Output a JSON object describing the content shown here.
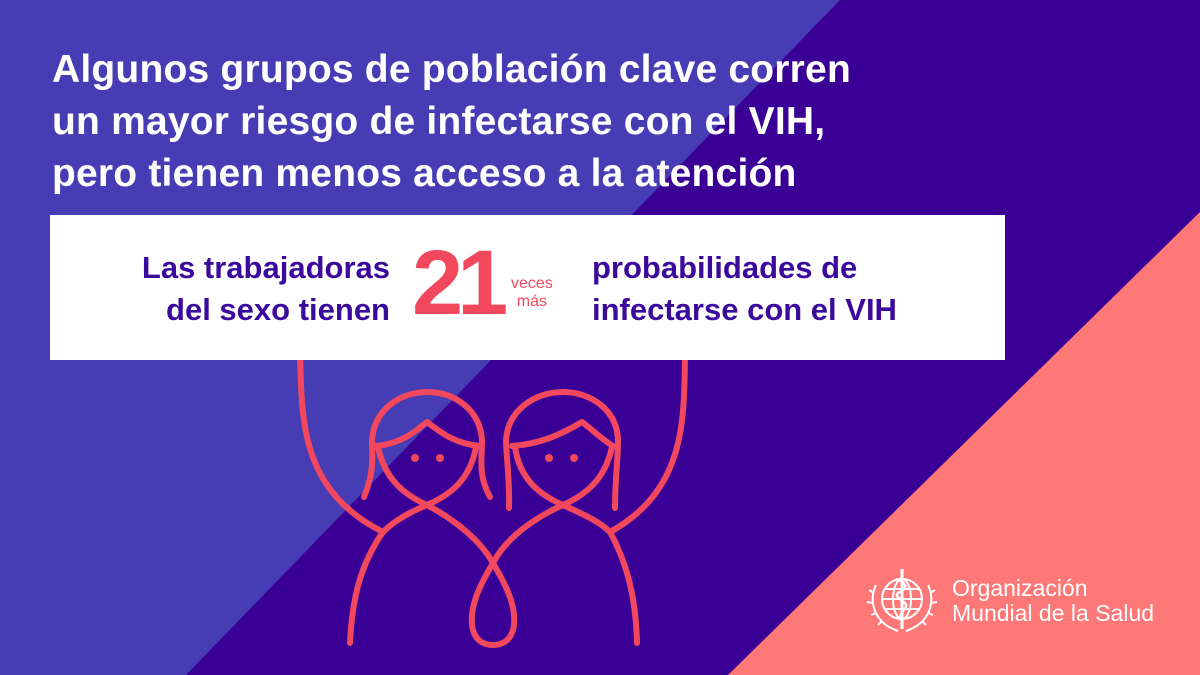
{
  "colors": {
    "light_purple": "#463cb4",
    "dark_purple": "#3a0096",
    "salmon": "#ff7878",
    "accent_red": "#f2485e",
    "text_purple": "#3b0a9c"
  },
  "title": {
    "lines": [
      "Algunos grupos de población clave corren",
      "un mayor riesgo de infectarse con el VIH,",
      "pero tienen menos acceso a la atención"
    ]
  },
  "stat": {
    "left_lines": [
      "Las trabajadoras",
      "del sexo tienen"
    ],
    "number": "21",
    "multiplier_lines": [
      "veces",
      "más"
    ],
    "right_lines": [
      "probabilidades de",
      "infectarse con el VIH"
    ]
  },
  "illustration": "two-women-holding-sign",
  "logo": {
    "icon": "who-emblem",
    "lines": [
      "Organización",
      "Mundial de la Salud"
    ]
  }
}
